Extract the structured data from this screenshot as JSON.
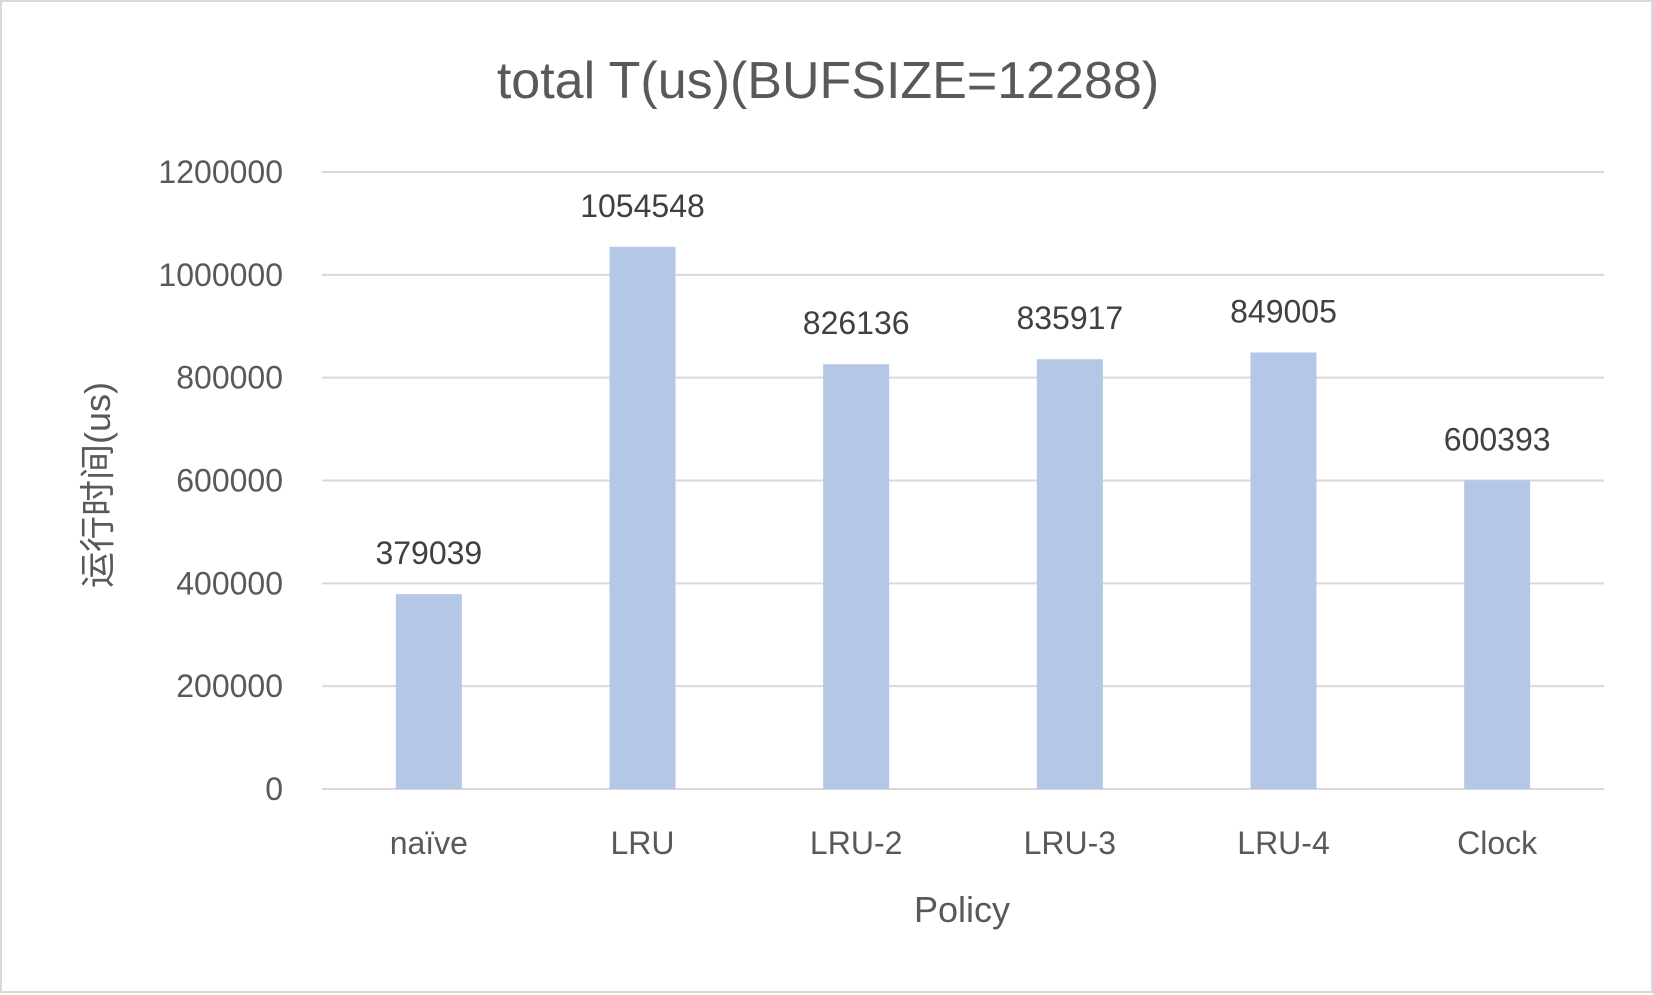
{
  "chart_data": {
    "type": "bar",
    "title": "total T(us)(BUFSIZE=12288)",
    "xlabel": "Policy",
    "ylabel": "运行时间(us)",
    "categories": [
      "naïve",
      "LRU",
      "LRU-2",
      "LRU-3",
      "LRU-4",
      "Clock"
    ],
    "series": [
      {
        "values": [
          379039,
          1054548,
          826136,
          835917,
          849005,
          600393
        ]
      }
    ],
    "data_labels": [
      "379039",
      "1054548",
      "826136",
      "835917",
      "849005",
      "600393"
    ],
    "ylim": [
      0,
      1200000
    ],
    "yticks": [
      "0",
      "200000",
      "400000",
      "600000",
      "800000",
      "1000000",
      "1200000"
    ],
    "grid": true,
    "legend": "none",
    "bar_color": "#b4c7e7",
    "grid_color": "#d9d9d9"
  }
}
